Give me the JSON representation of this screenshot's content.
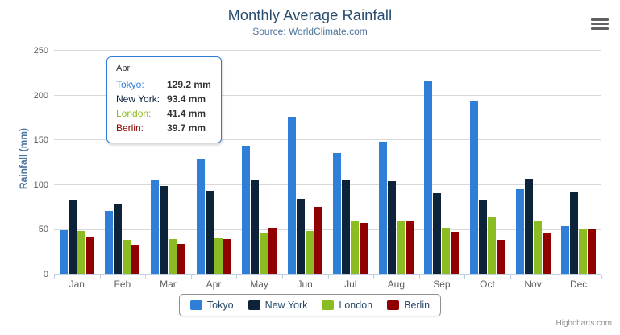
{
  "title": "Monthly Average Rainfall",
  "subtitle": "Source: WorldClimate.com",
  "credits": "Highcharts.com",
  "colors": {
    "title": "#274b6d",
    "subtitle": "#4d759e",
    "axis_title": "#4d759e",
    "axis_labels": "#606060",
    "gridline": "#d8d8d8",
    "axis_line": "#c0d0e0",
    "legend_text": "#274b6d",
    "legend_border": "#909090",
    "tooltip_border": "#2f7ed8",
    "credits_text": "#8f8f8f"
  },
  "chart_data": {
    "type": "bar",
    "title": "Monthly Average Rainfall",
    "subtitle": "Source: WorldClimate.com",
    "xlabel": "",
    "ylabel": "Rainfall (mm)",
    "categories": [
      "Jan",
      "Feb",
      "Mar",
      "Apr",
      "May",
      "Jun",
      "Jul",
      "Aug",
      "Sep",
      "Oct",
      "Nov",
      "Dec"
    ],
    "series": [
      {
        "name": "Tokyo",
        "color": "#2f7ed8",
        "values": [
          49.9,
          71.5,
          106.4,
          129.2,
          144.0,
          176.0,
          135.6,
          148.5,
          216.4,
          194.1,
          95.6,
          54.4
        ]
      },
      {
        "name": "New York",
        "color": "#0d233a",
        "values": [
          83.6,
          78.8,
          98.5,
          93.4,
          106.0,
          84.5,
          105.0,
          104.3,
          91.2,
          83.5,
          106.6,
          92.3
        ]
      },
      {
        "name": "London",
        "color": "#8bbc21",
        "values": [
          48.9,
          38.8,
          39.3,
          41.4,
          47.0,
          48.3,
          59.0,
          59.6,
          52.4,
          65.2,
          59.3,
          51.2
        ]
      },
      {
        "name": "Berlin",
        "color": "#910000",
        "values": [
          42.4,
          33.2,
          34.5,
          39.7,
          52.6,
          75.5,
          57.4,
          60.4,
          47.6,
          39.1,
          46.8,
          51.1
        ]
      }
    ],
    "yticks": [
      0,
      50,
      100,
      150,
      200,
      250
    ],
    "ylim": [
      0,
      250
    ],
    "grid": true,
    "legend_position": "bottom"
  },
  "tooltip": {
    "header": "Apr",
    "rows": [
      {
        "series": "Tokyo",
        "label": "Tokyo:",
        "value": "129.2 mm"
      },
      {
        "series": "New York",
        "label": "New York:",
        "value": "93.4 mm"
      },
      {
        "series": "London",
        "label": "London:",
        "value": "41.4 mm"
      },
      {
        "series": "Berlin",
        "label": "Berlin:",
        "value": "39.7 mm"
      }
    ]
  }
}
